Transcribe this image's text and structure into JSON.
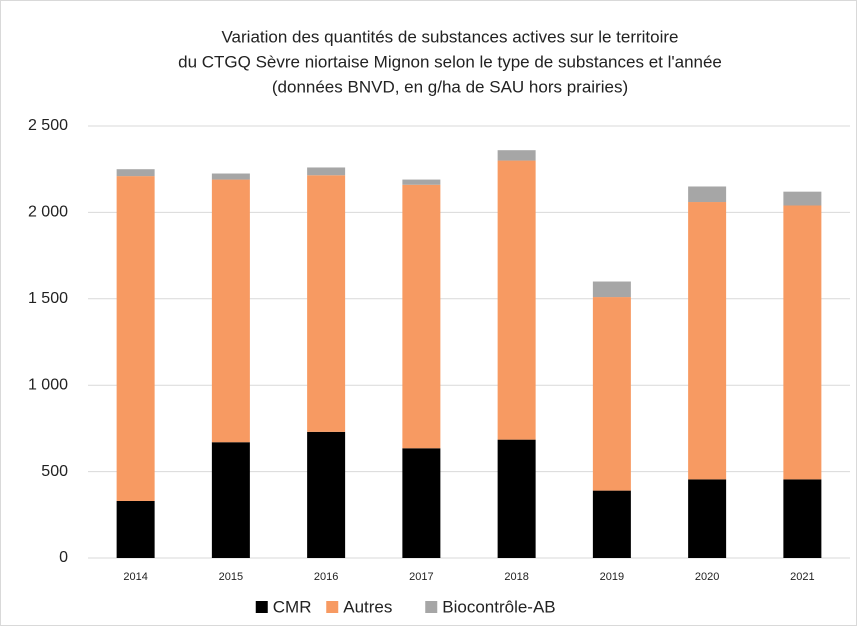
{
  "chart_data": {
    "type": "stacked_bar",
    "title": [
      "Variation des quantités de substances actives sur le territoire",
      "du CTGQ Sèvre niortaise Mignon selon le type de substances et l'année",
      "(données BNVD, en g/ha de SAU hors prairies)"
    ],
    "categories": [
      "2014",
      "2015",
      "2016",
      "2017",
      "2018",
      "2019",
      "2020",
      "2021"
    ],
    "series": [
      {
        "name": "CMR",
        "color": "#000000",
        "values": [
          330,
          670,
          730,
          635,
          685,
          390,
          455,
          455
        ]
      },
      {
        "name": "Autres",
        "color": "#f79a62",
        "values": [
          1880,
          1520,
          1485,
          1525,
          1615,
          1120,
          1605,
          1585
        ]
      },
      {
        "name": "Biocontrôle-AB",
        "color": "#a6a6a6",
        "values": [
          40,
          35,
          45,
          30,
          60,
          90,
          90,
          80
        ]
      }
    ],
    "ylim": [
      0,
      2500
    ],
    "yticks": [
      0,
      500,
      {
        "value": 1000,
        "label": "1 000"
      },
      {
        "value": 1500,
        "label": "1 500"
      },
      {
        "value": 2000,
        "label": "2 000"
      },
      {
        "value": 2500,
        "label": "2 500"
      }
    ],
    "grid": true,
    "legend": "bottom"
  }
}
